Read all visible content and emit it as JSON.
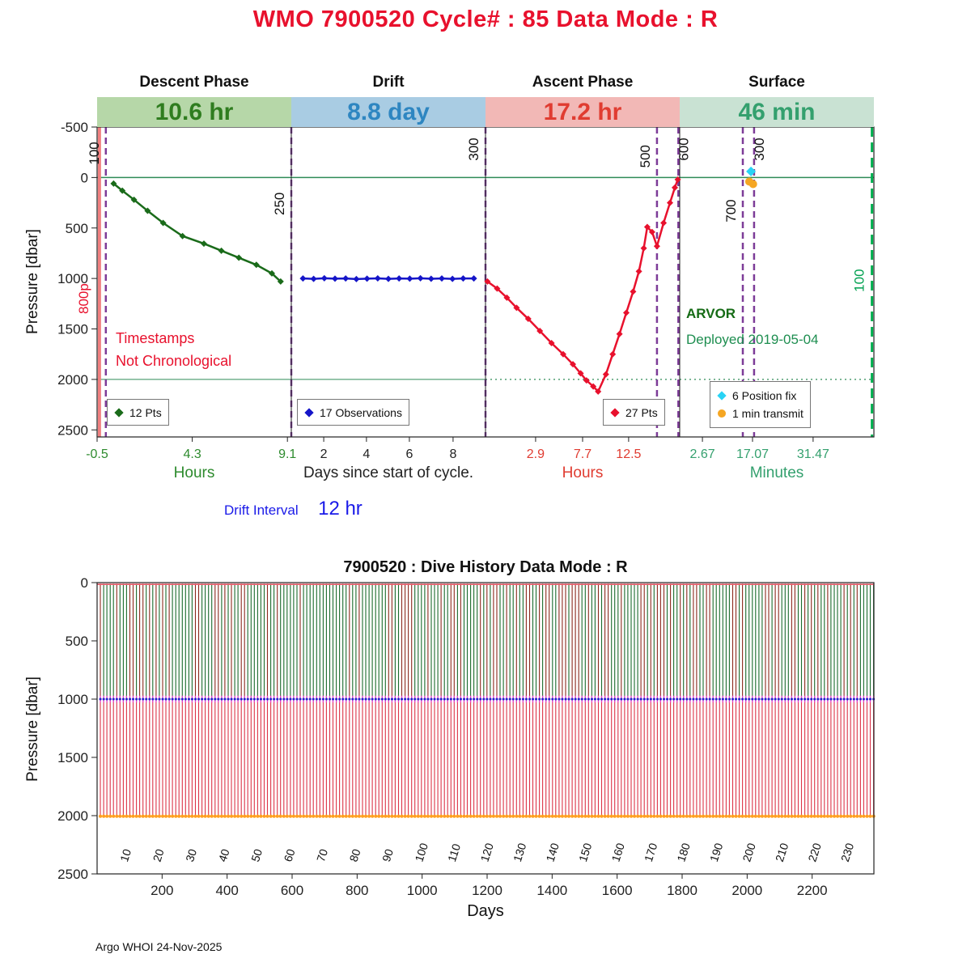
{
  "header": {
    "title": "WMO 7900520   Cycle# : 85   Data Mode : R"
  },
  "colors": {
    "title": "#e8112d",
    "timestamps_note": "#e8112d",
    "float_model": "#156b15",
    "deployed": "#1e8e50",
    "drift_interval": "#1a1ae8",
    "ref_line": "#2e8b57",
    "boundary": "#222222",
    "purple_dash": "#7d3c98",
    "green_dash": "#00b050",
    "red_band": "#f08080"
  },
  "top_chart": {
    "ylabel": "Pressure [dbar]",
    "yticks": [
      -500,
      0,
      500,
      1000,
      1500,
      2000,
      2500
    ],
    "phases": [
      {
        "name": "Descent Phase",
        "duration": "10.6 hr",
        "bar_bg": "#b6d7a8",
        "text_color": "#2f7d1f"
      },
      {
        "name": "Drift",
        "duration": "8.8 day",
        "bar_bg": "#a9cce3",
        "text_color": "#2e86c1"
      },
      {
        "name": "Ascent Phase",
        "duration": "17.2 hr",
        "bar_bg": "#f2b8b6",
        "text_color": "#e03c31"
      },
      {
        "name": "Surface",
        "duration": "46 min",
        "bar_bg": "#c9e2d3",
        "text_color": "#34a06e"
      }
    ],
    "x_axes": [
      {
        "title": "Hours",
        "color": "#2e8b2e",
        "ticks": [
          {
            "label": "-0.5",
            "f": 0.0
          },
          {
            "label": "4.3",
            "f": 0.49
          },
          {
            "label": "9.1",
            "f": 0.98
          }
        ]
      },
      {
        "title": "Days since start of cycle.",
        "color": "#222222",
        "ticks": [
          {
            "label": "2",
            "f": 0.167
          },
          {
            "label": "4",
            "f": 0.387
          },
          {
            "label": "6",
            "f": 0.608
          },
          {
            "label": "8",
            "f": 0.833
          }
        ]
      },
      {
        "title": "Hours",
        "color": "#e03c31",
        "ticks": [
          {
            "label": "2.9",
            "f": 0.258
          },
          {
            "label": "7.7",
            "f": 0.5
          },
          {
            "label": "12.5",
            "f": 0.737
          }
        ]
      },
      {
        "title": "Minutes",
        "color": "#34a06e",
        "ticks": [
          {
            "label": "2.67",
            "f": 0.117
          },
          {
            "label": "17.07",
            "f": 0.375
          },
          {
            "label": "31.47",
            "f": 0.687
          }
        ]
      }
    ],
    "marker_lines": [
      {
        "label": "800p",
        "x": 0.012,
        "style": "solid",
        "color": "#f08080",
        "width": 4,
        "label_color": "#e8112d",
        "label_p": 1200,
        "label_dx": -14
      },
      {
        "label": "100",
        "x": 0.045,
        "style": "dashed",
        "color": "#7d3c98",
        "width": 2.5,
        "label_color": "#111111",
        "label_p": -240,
        "label_dx": -9
      },
      {
        "label": "250",
        "x": 1.0,
        "style": "dashed",
        "color": "#7d3c98",
        "width": 2.5,
        "label_color": "#111111",
        "label_p": 260,
        "label_dx": -9
      },
      {
        "label": "300",
        "x": 2.0,
        "style": "dashed",
        "color": "#7d3c98",
        "width": 2.5,
        "label_color": "#111111",
        "label_p": -280,
        "label_dx": -9
      },
      {
        "label": "500",
        "x": 2.883,
        "style": "dashed",
        "color": "#7d3c98",
        "width": 2.5,
        "label_color": "#111111",
        "label_p": -210,
        "label_dx": -9
      },
      {
        "label": "600",
        "x": 2.993,
        "style": "dashed",
        "color": "#7d3c98",
        "width": 2.5,
        "label_color": "#111111",
        "label_p": -280,
        "label_dx": 12
      },
      {
        "label": "700",
        "x": 3.325,
        "style": "dashed",
        "color": "#7d3c98",
        "width": 2.5,
        "label_color": "#111111",
        "label_p": 330,
        "label_dx": -9
      },
      {
        "label": "300",
        "x": 3.383,
        "style": "dashed",
        "color": "#7d3c98",
        "width": 2.5,
        "label_color": "#111111",
        "label_p": -280,
        "label_dx": 12
      },
      {
        "label": "100",
        "x": 3.99,
        "style": "dashed",
        "color": "#00b050",
        "width": 3,
        "label_color": "#00a050",
        "label_p": 1020,
        "label_dx": -10
      }
    ],
    "legends": [
      {
        "items": [
          {
            "marker": "diamond",
            "color": "#1a6b1a",
            "label": "12 Pts"
          }
        ]
      },
      {
        "items": [
          {
            "marker": "diamond",
            "color": "#1515c8",
            "label": "17 Observations"
          }
        ]
      },
      {
        "items": [
          {
            "marker": "diamond",
            "color": "#e8112d",
            "label": "27 Pts"
          }
        ]
      },
      {
        "items": [
          {
            "marker": "diamond",
            "color": "#29d3f5",
            "label": "6 Position fix"
          },
          {
            "marker": "circle",
            "color": "#f5a623",
            "label": "1 min transmit"
          }
        ]
      }
    ],
    "annotations": {
      "timestamps_line1": "Timestamps",
      "timestamps_line2": "Not Chronological",
      "float_model": "ARVOR",
      "deployed": "Deployed 2019-05-04"
    },
    "drift_interval": {
      "label": "Drift Interval",
      "value": "12 hr"
    }
  },
  "chart_data": [
    {
      "type": "line",
      "title": "Cycle 85 phase profile (descent / drift / ascent / surface)",
      "ylabel": "Pressure [dbar]",
      "ylim": [
        -500,
        2570
      ],
      "x_units": "segment-normalized 0-4 (Hours | Days | Hours | Minutes)",
      "series": [
        {
          "name": "descent",
          "legend": "12 Pts",
          "color": "#1a6b1a",
          "marker": "diamond",
          "points": [
            [
              0.085,
              60
            ],
            [
              0.13,
              130
            ],
            [
              0.19,
              220
            ],
            [
              0.26,
              330
            ],
            [
              0.34,
              450
            ],
            [
              0.44,
              580
            ],
            [
              0.55,
              655
            ],
            [
              0.64,
              725
            ],
            [
              0.73,
              795
            ],
            [
              0.82,
              865
            ],
            [
              0.9,
              950
            ],
            [
              0.945,
              1030
            ]
          ]
        },
        {
          "name": "drift",
          "legend": "17 Observations",
          "color": "#1515c8",
          "marker": "diamond",
          "points": [
            [
              1.06,
              1000
            ],
            [
              1.115,
              1004
            ],
            [
              1.17,
              998
            ],
            [
              1.225,
              1002
            ],
            [
              1.28,
              1000
            ],
            [
              1.335,
              1006
            ],
            [
              1.39,
              1002
            ],
            [
              1.445,
              999
            ],
            [
              1.5,
              1004
            ],
            [
              1.555,
              1000
            ],
            [
              1.61,
              1002
            ],
            [
              1.665,
              998
            ],
            [
              1.72,
              1003
            ],
            [
              1.775,
              1000
            ],
            [
              1.83,
              1004
            ],
            [
              1.885,
              1000
            ],
            [
              1.94,
              1000
            ]
          ]
        },
        {
          "name": "ascent",
          "legend": "27 Pts",
          "color": "#e8112d",
          "marker": "diamond",
          "points": [
            [
              2.01,
              1030
            ],
            [
              2.06,
              1100
            ],
            [
              2.11,
              1190
            ],
            [
              2.16,
              1290
            ],
            [
              2.22,
              1400
            ],
            [
              2.28,
              1520
            ],
            [
              2.34,
              1640
            ],
            [
              2.4,
              1750
            ],
            [
              2.45,
              1850
            ],
            [
              2.49,
              1940
            ],
            [
              2.52,
              2010
            ],
            [
              2.555,
              2070
            ],
            [
              2.58,
              2120
            ],
            [
              2.62,
              1950
            ],
            [
              2.655,
              1750
            ],
            [
              2.69,
              1550
            ],
            [
              2.725,
              1340
            ],
            [
              2.76,
              1130
            ],
            [
              2.79,
              930
            ],
            [
              2.815,
              700
            ],
            [
              2.833,
              490
            ],
            [
              2.858,
              540
            ],
            [
              2.883,
              680
            ],
            [
              2.917,
              450
            ],
            [
              2.95,
              250
            ],
            [
              2.975,
              100
            ],
            [
              2.99,
              20
            ]
          ]
        },
        {
          "name": "position_fix",
          "legend": "6 Position fix",
          "color": "#29d3f5",
          "marker": "diamond",
          "points": [
            [
              3.367,
              -60
            ]
          ]
        },
        {
          "name": "transmit",
          "legend": "1 min transmit",
          "color": "#f5a623",
          "marker": "circle",
          "points": [
            [
              3.358,
              40
            ],
            [
              3.378,
              65
            ]
          ]
        }
      ],
      "ref_lines": [
        {
          "p": 0
        },
        {
          "p": 2000
        }
      ]
    },
    {
      "type": "line",
      "title": "7900520 : Dive History      Data Mode : R",
      "xlabel": "Days",
      "ylabel": "Pressure [dbar]",
      "xlim": [
        0,
        2390
      ],
      "ylim": [
        0,
        2500
      ],
      "xticks": [
        200,
        400,
        600,
        800,
        1000,
        1200,
        1400,
        1600,
        1800,
        2000,
        2200
      ],
      "yticks": [
        0,
        500,
        1000,
        1500,
        2000,
        2500
      ],
      "n_cycles": 237,
      "days_per_cycle": 10.08,
      "park_pressure": 1000,
      "profile_pressure": 2000,
      "cycle_labels": [
        10,
        20,
        30,
        40,
        50,
        60,
        70,
        80,
        90,
        100,
        110,
        120,
        130,
        140,
        150,
        160,
        170,
        180,
        190,
        200,
        210,
        220,
        230
      ],
      "colors": {
        "descent_a": "#1b6b2d",
        "descent_b": "#8c2a1e",
        "deep": "#dc3448",
        "park_band": "#e83cc8",
        "park_dot": "#2222cc",
        "bottom_dot": "#ffa020",
        "surface_line": "#e85868"
      }
    }
  ],
  "footer": {
    "credit": "Argo WHOI 24-Nov-2025"
  }
}
